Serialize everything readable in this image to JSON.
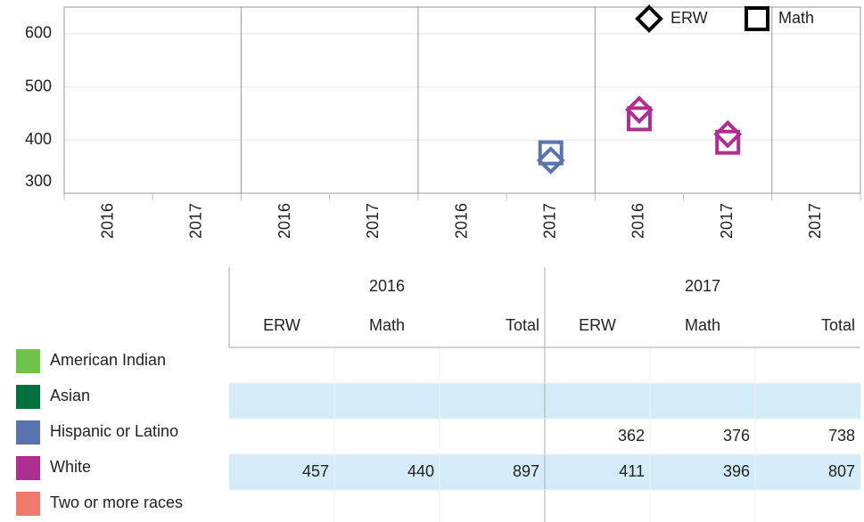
{
  "chart_data": {
    "type": "scatter",
    "categories": [
      "2016",
      "2017",
      "2016",
      "2017",
      "2016",
      "2017",
      "2016",
      "2017",
      "2017"
    ],
    "colors": [
      null,
      null,
      null,
      null,
      null,
      "#5a73ae",
      "#ae2f8f",
      "#ae2f8f",
      null
    ],
    "series": [
      {
        "name": "ERW",
        "marker": "diamond",
        "values": [
          null,
          null,
          null,
          null,
          null,
          362,
          457,
          411,
          null
        ]
      },
      {
        "name": "Math",
        "marker": "square",
        "values": [
          null,
          null,
          null,
          null,
          null,
          376,
          440,
          396,
          null
        ]
      }
    ],
    "ylim": [
      300,
      650
    ],
    "yticks": [
      300,
      400,
      500,
      600
    ],
    "grid": true,
    "legend": "top-right"
  },
  "table": {
    "years": [
      "2016",
      "2017"
    ],
    "columns": [
      "ERW",
      "Math",
      "Total",
      "ERW",
      "Math",
      "Total"
    ],
    "rows": [
      {
        "label": "American Indian",
        "color": "#6cc24a",
        "cells": [
          null,
          null,
          null,
          null,
          null,
          null
        ]
      },
      {
        "label": "Asian",
        "color": "#00703c",
        "cells": [
          null,
          null,
          null,
          null,
          null,
          null
        ]
      },
      {
        "label": "Hispanic or Latino",
        "color": "#5a73ae",
        "cells": [
          null,
          null,
          null,
          362,
          376,
          738
        ]
      },
      {
        "label": "White",
        "color": "#ae2f8f",
        "cells": [
          457,
          440,
          897,
          411,
          396,
          807
        ]
      },
      {
        "label": "Two or more races",
        "color": "#ee7a6e",
        "cells": [
          null,
          null,
          null,
          null,
          null,
          null
        ]
      }
    ]
  }
}
